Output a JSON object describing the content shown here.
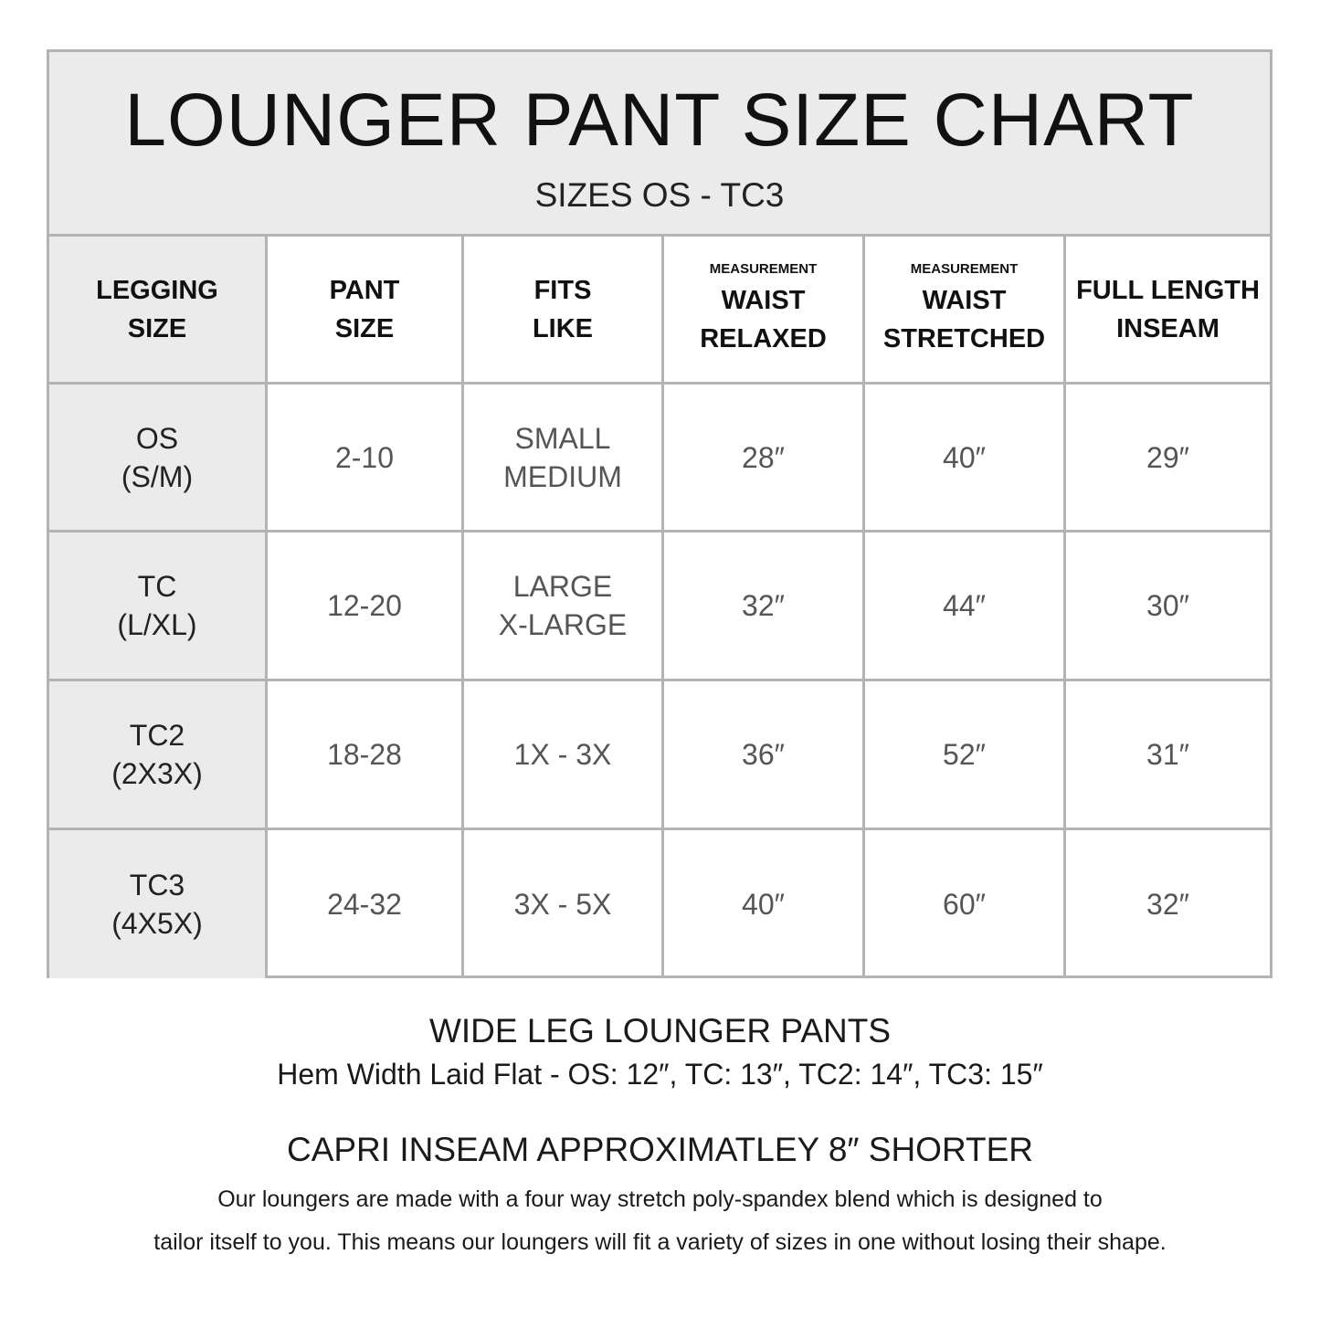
{
  "title": "LOUNGER PANT SIZE CHART",
  "subtitle": "SIZES OS - TC3",
  "headers": [
    {
      "top": "",
      "lines": [
        "LEGGING",
        "SIZE"
      ]
    },
    {
      "top": "",
      "lines": [
        "PANT",
        "SIZE"
      ]
    },
    {
      "top": "",
      "lines": [
        "FITS",
        "LIKE"
      ]
    },
    {
      "top": "MEASUREMENT",
      "lines": [
        "WAIST",
        "RELAXED"
      ]
    },
    {
      "top": "MEASUREMENT",
      "lines": [
        "WAIST",
        "STRETCHED"
      ]
    },
    {
      "top": "",
      "lines": [
        "FULL LENGTH",
        "INSEAM"
      ]
    }
  ],
  "rows": [
    {
      "size": [
        "OS",
        "(S/M)"
      ],
      "pant": "2-10",
      "fits": [
        "SMALL",
        "MEDIUM"
      ],
      "relaxed": "28″",
      "stretched": "40″",
      "inseam": "29″"
    },
    {
      "size": [
        "TC",
        "(L/XL)"
      ],
      "pant": "12-20",
      "fits": [
        "LARGE",
        "X-LARGE"
      ],
      "relaxed": "32″",
      "stretched": "44″",
      "inseam": "30″"
    },
    {
      "size": [
        "TC2",
        "(2X3X)"
      ],
      "pant": "18-28",
      "fits": [
        "1X - 3X",
        ""
      ],
      "relaxed": "36″",
      "stretched": "52″",
      "inseam": "31″"
    },
    {
      "size": [
        "TC3",
        "(4X5X)"
      ],
      "pant": "24-32",
      "fits": [
        "3X - 5X",
        ""
      ],
      "relaxed": "40″",
      "stretched": "60″",
      "inseam": "32″"
    }
  ],
  "footer": {
    "wide_leg_title": "WIDE LEG LOUNGER PANTS",
    "hem_width": "Hem Width Laid Flat - OS: 12″,  TC: 13″,  TC2: 14″,  TC3: 15″",
    "capri": "CAPRI INSEAM APPROXIMATLEY 8″ SHORTER",
    "desc_line1": "Our loungers are made with a four way stretch poly-spandex blend which is designed to",
    "desc_line2": "tailor itself to you. This means our loungers will fit a variety of sizes in one without losing their shape."
  },
  "colors": {
    "border": "#b3b3b3",
    "shaded": "#ebebeb",
    "value_text": "#555555"
  }
}
